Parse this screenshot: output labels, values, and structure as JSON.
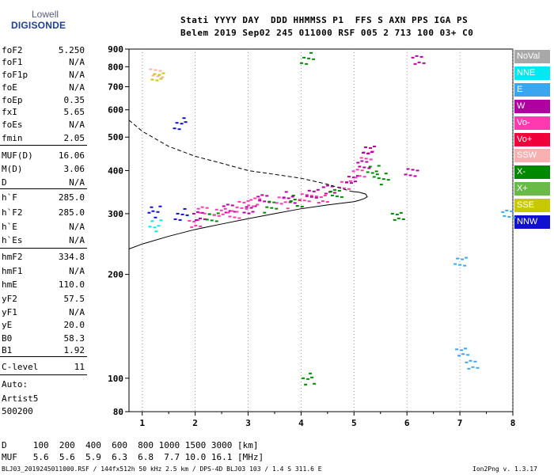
{
  "logo": {
    "line1": "Lowell",
    "line2": "DIGISONDE"
  },
  "header": {
    "labels": "Stati YYYY DAY  DDD HHMMSS P1  FFS S AXN PPS IGA PS",
    "values": "Belem 2019 Sep02 245 011000 RSF 005 2 713 100 03+ C0"
  },
  "params": [
    {
      "name": "foF2",
      "value": "5.250"
    },
    {
      "name": "foF1",
      "value": "N/A"
    },
    {
      "name": "foF1p",
      "value": "N/A"
    },
    {
      "name": "foE",
      "value": "N/A"
    },
    {
      "name": "foEp",
      "value": "0.35"
    },
    {
      "name": "fxI",
      "value": "5.65"
    },
    {
      "name": "foEs",
      "value": "N/A"
    },
    {
      "name": "fmin",
      "value": "2.05"
    },
    {
      "name": "MUF(D)",
      "value": "16.06"
    },
    {
      "name": "M(D)",
      "value": "3.06"
    },
    {
      "name": "D",
      "value": "N/A"
    },
    {
      "name": "h`F",
      "value": "285.0"
    },
    {
      "name": "h`F2",
      "value": "285.0"
    },
    {
      "name": "h`E",
      "value": "N/A"
    },
    {
      "name": "h`Es",
      "value": "N/A"
    },
    {
      "name": "hmF2",
      "value": "334.8"
    },
    {
      "name": "hmF1",
      "value": "N/A"
    },
    {
      "name": "hmE",
      "value": "110.0"
    },
    {
      "name": "yF2",
      "value": "57.5"
    },
    {
      "name": "yF1",
      "value": "N/A"
    },
    {
      "name": "yE",
      "value": "20.0"
    },
    {
      "name": "B0",
      "value": "58.3"
    },
    {
      "name": "B1",
      "value": "1.92"
    },
    {
      "name": "C-level",
      "value": "11"
    }
  ],
  "auto": {
    "line1": "Auto:",
    "line2": "Artist5",
    "line3": "500200"
  },
  "muf_table": {
    "d_row": "D     100  200  400  600  800 1000 1500 3000 [km]",
    "muf_row": "MUF   5.6  5.6  5.9  6.3  6.8  7.7 10.0 16.1 [MHz]"
  },
  "footer": {
    "left": "BLJ03_2019245011000.RSF / 144fx512h 50 kHz 2.5 km / DPS-4D BLJ03 103 / 1.4 S 311.6 E",
    "right": "Ion2Png v. 1.3.17"
  },
  "legend": [
    {
      "label": "NoVal",
      "color": "#a8a8a8"
    },
    {
      "label": "NNE",
      "color": "#00e8f0"
    },
    {
      "label": "E",
      "color": "#3aa6f0"
    },
    {
      "label": "W",
      "color": "#b000a0"
    },
    {
      "label": "Vo-",
      "color": "#ff3ab0"
    },
    {
      "label": "Vo+",
      "color": "#f0003a"
    },
    {
      "label": "SSW",
      "color": "#f8b0b0"
    },
    {
      "label": "X-",
      "color": "#008800"
    },
    {
      "label": "X+",
      "color": "#6aba4a"
    },
    {
      "label": "SSE",
      "color": "#c8c800"
    },
    {
      "label": "NNW",
      "color": "#1010d0"
    }
  ],
  "chart_data": {
    "type": "scatter",
    "title": "",
    "xlabel": "",
    "ylabel": "",
    "xlim": [
      0.75,
      8.0
    ],
    "ylim": [
      80,
      900
    ],
    "y_scale": "log",
    "x_ticks": [
      "1",
      "2",
      "3",
      "4",
      "5",
      "6",
      "7",
      "8"
    ],
    "y_ticks": [
      "80",
      "100",
      "200",
      "300",
      "400",
      "500",
      "600",
      "700",
      "800",
      "900"
    ],
    "grid": "dotted vertical lines at integer frequencies",
    "profile": {
      "name": "",
      "style": "solid",
      "x": [
        0.75,
        1.0,
        1.5,
        2.0,
        2.5,
        3.0,
        3.5,
        4.0,
        4.5,
        5.0,
        5.1,
        5.2,
        5.25,
        5.22,
        5.1,
        4.95
      ],
      "y": [
        237,
        245,
        258,
        270,
        280,
        290,
        300,
        310,
        318,
        325,
        328,
        332,
        336,
        342,
        346,
        348
      ]
    },
    "topside": {
      "name": "",
      "style": "dashed",
      "x": [
        0.75,
        1.0,
        1.5,
        2.0,
        2.5,
        3.0,
        3.5,
        4.0,
        4.5,
        4.95
      ],
      "y": [
        560,
        520,
        470,
        440,
        420,
        400,
        390,
        380,
        365,
        348
      ]
    },
    "echo_clusters": [
      {
        "x": 1.25,
        "y": 762,
        "color": "#f8b0b0"
      },
      {
        "x": 1.25,
        "y": 742,
        "color": "#c8c800"
      },
      {
        "x": 1.22,
        "y": 278,
        "color": "#00e8f0"
      },
      {
        "x": 1.22,
        "y": 305,
        "color": "#1010d0"
      },
      {
        "x": 1.7,
        "y": 300,
        "color": "#1010d0"
      },
      {
        "x": 1.7,
        "y": 550,
        "color": "#1010d0"
      },
      {
        "x": 1.95,
        "y": 286,
        "color": "#ff3ab0"
      },
      {
        "x": 2.05,
        "y": 300,
        "color": "#b000a0"
      },
      {
        "x": 2.15,
        "y": 310,
        "color": "#ff3ab0"
      },
      {
        "x": 2.3,
        "y": 296,
        "color": "#008800"
      },
      {
        "x": 2.45,
        "y": 305,
        "color": "#ff3ab0"
      },
      {
        "x": 2.6,
        "y": 312,
        "color": "#b000a0"
      },
      {
        "x": 2.7,
        "y": 299,
        "color": "#ff3ab0"
      },
      {
        "x": 2.85,
        "y": 318,
        "color": "#ff3ab0"
      },
      {
        "x": 3.0,
        "y": 307,
        "color": "#b000a0"
      },
      {
        "x": 3.1,
        "y": 322,
        "color": "#ff3ab0"
      },
      {
        "x": 3.25,
        "y": 329,
        "color": "#b000a0"
      },
      {
        "x": 3.4,
        "y": 315,
        "color": "#008800"
      },
      {
        "x": 3.6,
        "y": 324,
        "color": "#ff3ab0"
      },
      {
        "x": 3.75,
        "y": 336,
        "color": "#b000a0"
      },
      {
        "x": 3.9,
        "y": 328,
        "color": "#008800"
      },
      {
        "x": 4.05,
        "y": 340,
        "color": "#ff3ab0"
      },
      {
        "x": 4.2,
        "y": 348,
        "color": "#b000a0"
      },
      {
        "x": 4.35,
        "y": 335,
        "color": "#ff3ab0"
      },
      {
        "x": 4.5,
        "y": 356,
        "color": "#b000a0"
      },
      {
        "x": 4.65,
        "y": 346,
        "color": "#008800"
      },
      {
        "x": 4.8,
        "y": 365,
        "color": "#ff3ab0"
      },
      {
        "x": 4.95,
        "y": 378,
        "color": "#b000a0"
      },
      {
        "x": 5.05,
        "y": 392,
        "color": "#ff3ab0"
      },
      {
        "x": 5.15,
        "y": 415,
        "color": "#b000a0"
      },
      {
        "x": 5.2,
        "y": 440,
        "color": "#ff3ab0"
      },
      {
        "x": 5.25,
        "y": 455,
        "color": "#b000a0"
      },
      {
        "x": 5.35,
        "y": 400,
        "color": "#008800"
      },
      {
        "x": 5.5,
        "y": 380,
        "color": "#008800"
      },
      {
        "x": 4.1,
        "y": 850,
        "color": "#008800"
      },
      {
        "x": 4.1,
        "y": 100,
        "color": "#008800"
      },
      {
        "x": 5.8,
        "y": 300,
        "color": "#008800"
      },
      {
        "x": 6.2,
        "y": 850,
        "color": "#b000a0"
      },
      {
        "x": 6.05,
        "y": 400,
        "color": "#b000a0"
      },
      {
        "x": 7.0,
        "y": 220,
        "color": "#3aa6f0"
      },
      {
        "x": 7.0,
        "y": 120,
        "color": "#3aa6f0"
      },
      {
        "x": 7.2,
        "y": 110,
        "color": "#3aa6f0"
      },
      {
        "x": 7.9,
        "y": 300,
        "color": "#3aa6f0"
      }
    ]
  }
}
